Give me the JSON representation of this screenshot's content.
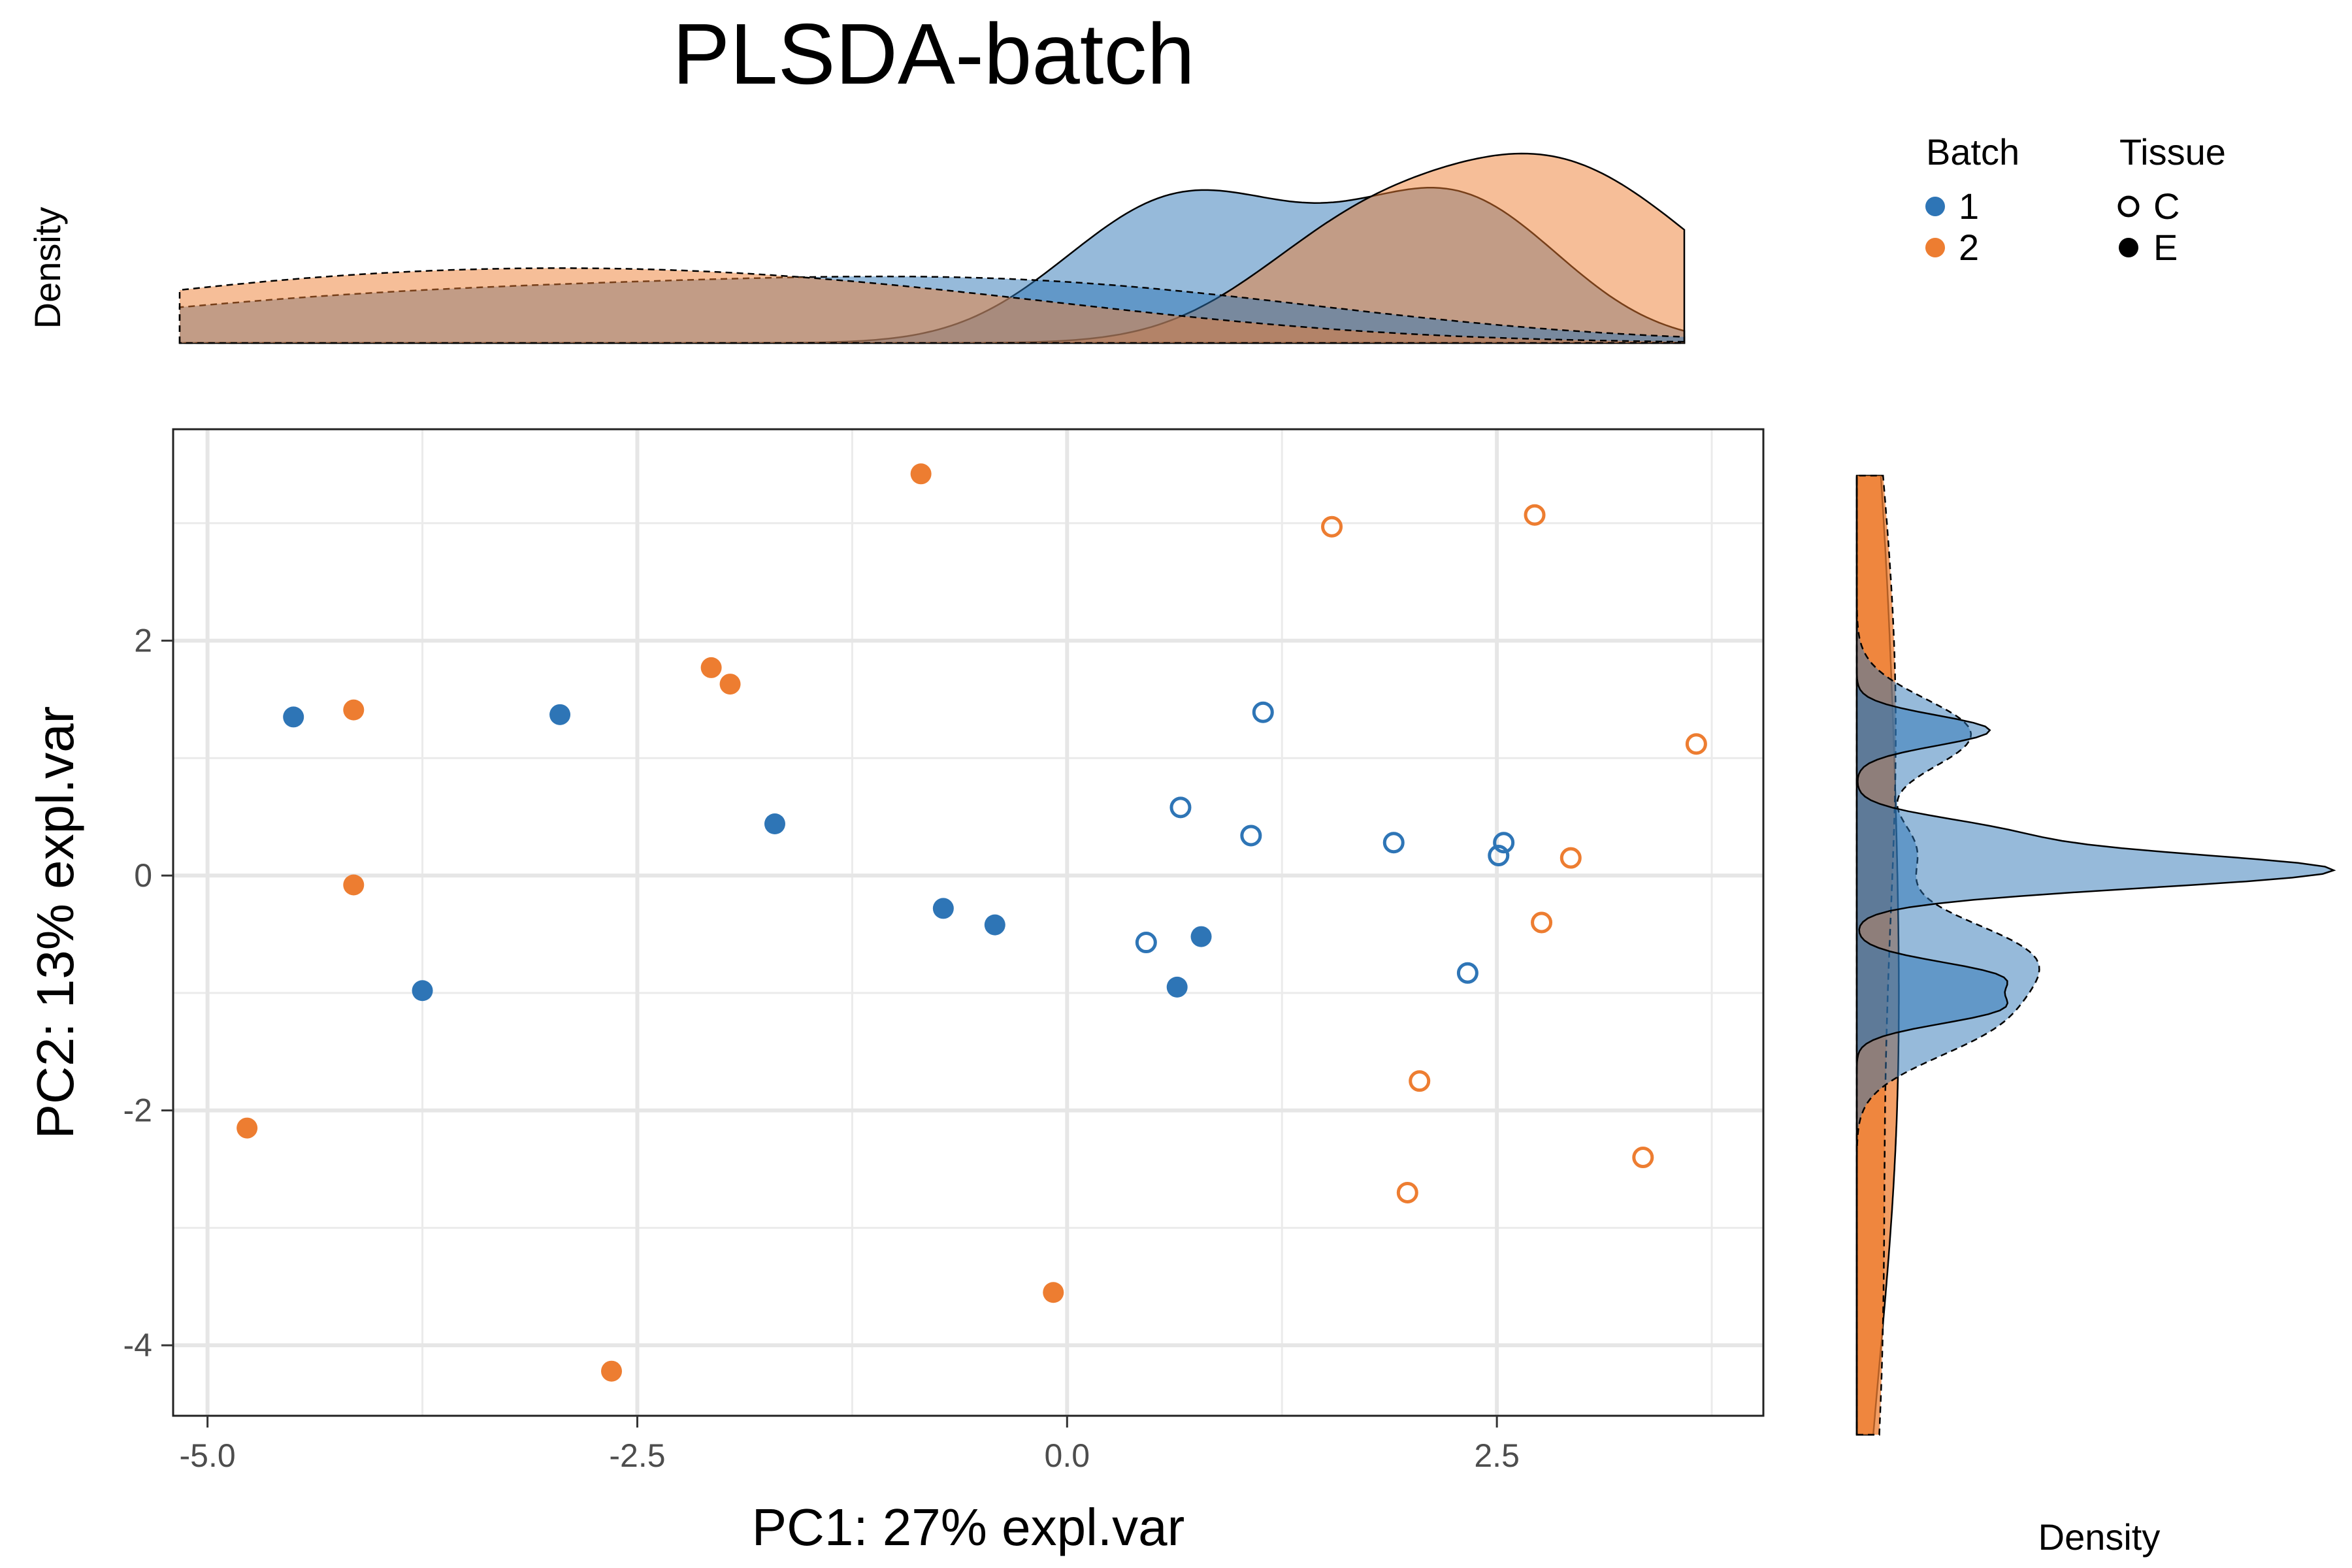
{
  "chart_data": {
    "type": "scatter",
    "title": "PLSDA-batch",
    "xlabel": "PC1: 27% expl.var",
    "ylabel": "PC2: 13% expl.var",
    "xlim": [
      -5.2,
      4.05
    ],
    "ylim": [
      -4.6,
      3.8
    ],
    "x_ticks": [
      -5.0,
      -2.5,
      0.0,
      2.5
    ],
    "x_tick_labels": [
      "-5.0",
      "-2.5",
      "0.0",
      "2.5"
    ],
    "y_ticks": [
      -4,
      -2,
      0,
      2
    ],
    "y_tick_labels": [
      "-4",
      "-2",
      "0",
      "2"
    ],
    "grid": true,
    "colors": {
      "batch_1": "#2E75B6",
      "batch_2": "#ED7D31"
    },
    "legend": {
      "placement": "top-right",
      "batch_title": "Batch",
      "tissue_title": "Tissue",
      "batch_items": [
        {
          "label": "1",
          "batch": "1"
        },
        {
          "label": "2",
          "batch": "2"
        }
      ],
      "tissue_items": [
        {
          "label": "C",
          "tissue": "C"
        },
        {
          "label": "E",
          "tissue": "E"
        }
      ]
    },
    "top_density_label": "Density",
    "right_density_label": "Density",
    "points": [
      {
        "x": -4.5,
        "y": 1.35,
        "batch": "1",
        "tissue": "E"
      },
      {
        "x": -2.95,
        "y": 1.37,
        "batch": "1",
        "tissue": "E"
      },
      {
        "x": -1.7,
        "y": 0.44,
        "batch": "1",
        "tissue": "E"
      },
      {
        "x": -3.75,
        "y": -0.98,
        "batch": "1",
        "tissue": "E"
      },
      {
        "x": -0.72,
        "y": -0.28,
        "batch": "1",
        "tissue": "E"
      },
      {
        "x": -0.42,
        "y": -0.42,
        "batch": "1",
        "tissue": "E"
      },
      {
        "x": 0.78,
        "y": -0.52,
        "batch": "1",
        "tissue": "E"
      },
      {
        "x": 0.64,
        "y": -0.95,
        "batch": "1",
        "tissue": "E"
      },
      {
        "x": -4.15,
        "y": 1.41,
        "batch": "2",
        "tissue": "E"
      },
      {
        "x": -4.15,
        "y": -0.08,
        "batch": "2",
        "tissue": "E"
      },
      {
        "x": -4.77,
        "y": -2.15,
        "batch": "2",
        "tissue": "E"
      },
      {
        "x": -2.07,
        "y": 1.77,
        "batch": "2",
        "tissue": "E"
      },
      {
        "x": -1.96,
        "y": 1.63,
        "batch": "2",
        "tissue": "E"
      },
      {
        "x": -0.85,
        "y": 3.42,
        "batch": "2",
        "tissue": "E"
      },
      {
        "x": -0.08,
        "y": -3.55,
        "batch": "2",
        "tissue": "E"
      },
      {
        "x": -2.65,
        "y": -4.22,
        "batch": "2",
        "tissue": "E"
      },
      {
        "x": 1.14,
        "y": 1.39,
        "batch": "1",
        "tissue": "C"
      },
      {
        "x": 0.66,
        "y": 0.58,
        "batch": "1",
        "tissue": "C"
      },
      {
        "x": 1.07,
        "y": 0.34,
        "batch": "1",
        "tissue": "C"
      },
      {
        "x": 1.9,
        "y": 0.28,
        "batch": "1",
        "tissue": "C"
      },
      {
        "x": 2.54,
        "y": 0.28,
        "batch": "1",
        "tissue": "C"
      },
      {
        "x": 2.51,
        "y": 0.17,
        "batch": "1",
        "tissue": "C"
      },
      {
        "x": 0.46,
        "y": -0.57,
        "batch": "1",
        "tissue": "C"
      },
      {
        "x": 2.33,
        "y": -0.83,
        "batch": "1",
        "tissue": "C"
      },
      {
        "x": 1.54,
        "y": 2.97,
        "batch": "2",
        "tissue": "C"
      },
      {
        "x": 2.72,
        "y": 3.07,
        "batch": "2",
        "tissue": "C"
      },
      {
        "x": 3.66,
        "y": 1.12,
        "batch": "2",
        "tissue": "C"
      },
      {
        "x": 2.93,
        "y": 0.15,
        "batch": "2",
        "tissue": "C"
      },
      {
        "x": 2.76,
        "y": -0.4,
        "batch": "2",
        "tissue": "C"
      },
      {
        "x": 2.05,
        "y": -1.75,
        "batch": "2",
        "tissue": "C"
      },
      {
        "x": 1.98,
        "y": -2.7,
        "batch": "2",
        "tissue": "C"
      },
      {
        "x": 3.35,
        "y": -2.4,
        "batch": "2",
        "tissue": "C"
      }
    ]
  }
}
